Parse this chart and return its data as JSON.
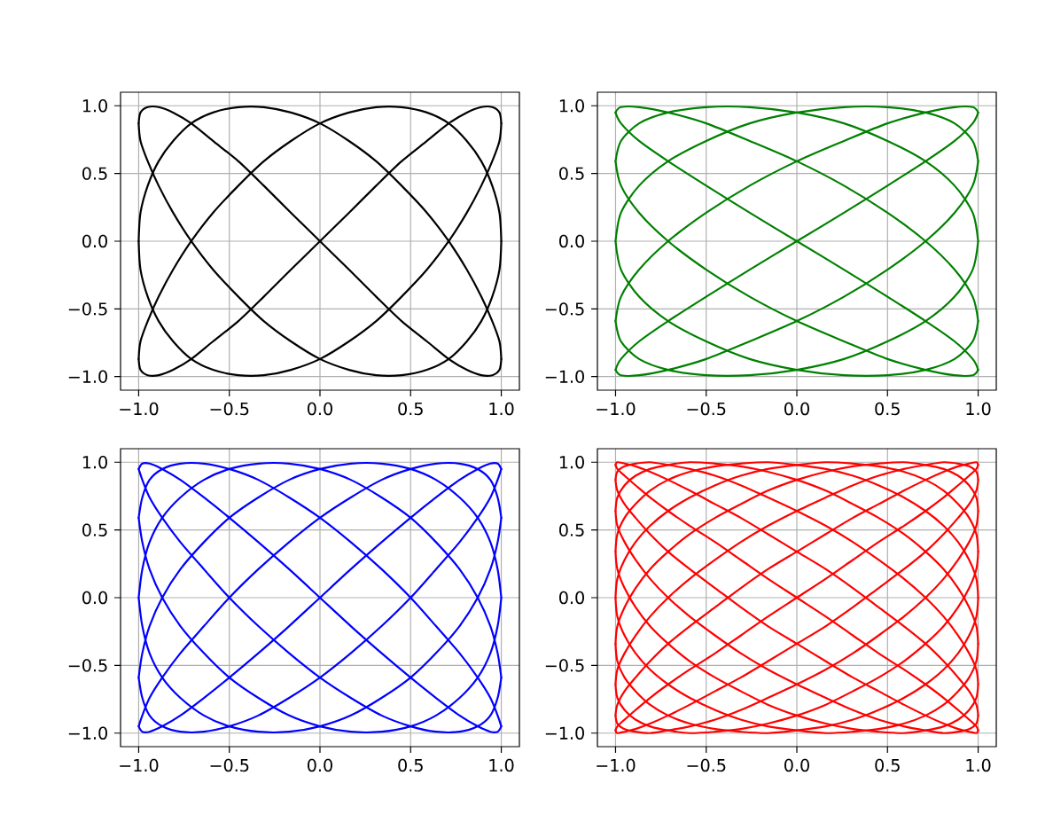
{
  "chart_data": [
    {
      "type": "line",
      "grid": true,
      "xlim": [
        -1.1,
        1.1
      ],
      "ylim": [
        -1.1,
        1.1
      ],
      "xticks": [
        {
          "value": -1.0,
          "label": "−1.0"
        },
        {
          "value": -0.5,
          "label": "−0.5"
        },
        {
          "value": 0.0,
          "label": "0.0"
        },
        {
          "value": 0.5,
          "label": "0.5"
        },
        {
          "value": 1.0,
          "label": "1.0"
        }
      ],
      "yticks": [
        {
          "value": -1.0,
          "label": "−1.0"
        },
        {
          "value": -0.5,
          "label": "−0.5"
        },
        {
          "value": 0.0,
          "label": "0.0"
        },
        {
          "value": 0.5,
          "label": "0.5"
        },
        {
          "value": 1.0,
          "label": "1.0"
        }
      ],
      "series": [
        {
          "color": "#000000",
          "x": [
            -1,
            -0.99,
            -0.95,
            -0.89,
            -0.81,
            -0.71,
            -0.59,
            -0.45,
            -0.31,
            -0.16,
            0,
            0.16,
            0.31,
            0.45,
            0.59,
            0.71,
            0.81,
            0.89,
            0.95,
            0.99,
            1
          ],
          "values": [
            -0.87,
            -0.95,
            -0.99,
            -0.99,
            -0.95,
            -0.87,
            -0.74,
            -0.59,
            -0.41,
            -0.21,
            0,
            0.21,
            0.41,
            0.59,
            0.74,
            0.87,
            0.95,
            0.99,
            0.99,
            0.95,
            0.87
          ]
        },
        {
          "color": "#000000",
          "x": [
            1,
            0.99,
            0.95,
            0.89,
            0.81,
            0.71,
            0.59,
            0.45,
            0.31,
            0.16,
            0,
            -0.16,
            -0.31,
            -0.45,
            -0.59,
            -0.71,
            -0.81,
            -0.89,
            -0.95,
            -0.99,
            -1
          ],
          "values": [
            0.87,
            0.74,
            0.59,
            0.41,
            0.21,
            0,
            -0.21,
            -0.41,
            -0.59,
            -0.74,
            -0.87,
            -0.95,
            -0.99,
            -0.99,
            -0.95,
            -0.87,
            -0.74,
            -0.59,
            -0.41,
            -0.21,
            0
          ]
        },
        {
          "color": "#000000",
          "x": [
            -1,
            -0.99,
            -0.95,
            -0.89,
            -0.81,
            -0.71,
            -0.59,
            -0.45,
            -0.31,
            -0.16,
            0,
            0.16,
            0.31,
            0.45,
            0.59,
            0.71,
            0.81,
            0.89,
            0.95,
            0.99,
            1
          ],
          "values": [
            0,
            0.21,
            0.41,
            0.59,
            0.74,
            0.87,
            0.95,
            0.99,
            0.99,
            0.95,
            0.87,
            0.74,
            0.59,
            0.41,
            0.21,
            0,
            -0.21,
            -0.41,
            -0.59,
            -0.74,
            -0.87
          ]
        },
        {
          "color": "#000000",
          "x": [
            1,
            0.99,
            0.95,
            0.89,
            0.81,
            0.71,
            0.59,
            0.45,
            0.31,
            0.16,
            0,
            -0.16,
            -0.31,
            -0.45,
            -0.59,
            -0.71,
            -0.81,
            -0.89,
            -0.95,
            -0.99,
            -1
          ],
          "values": [
            -0.87,
            -0.95,
            -0.99,
            -0.99,
            -0.95,
            -0.87,
            -0.74,
            -0.59,
            -0.41,
            -0.21,
            0,
            0.21,
            0.41,
            0.59,
            0.74,
            0.87,
            0.95,
            0.99,
            0.99,
            0.95,
            0.87
          ]
        },
        {
          "color": "#000000",
          "x": [
            -1,
            -0.99,
            -0.95,
            -0.89,
            -0.81,
            -0.71,
            -0.59,
            -0.45,
            -0.31,
            -0.16,
            0,
            0.16,
            0.31,
            0.45,
            0.59,
            0.71,
            0.81,
            0.89,
            0.95,
            0.99,
            1
          ],
          "values": [
            0.87,
            0.74,
            0.59,
            0.41,
            0.21,
            0,
            -0.21,
            -0.41,
            -0.59,
            -0.74,
            -0.87,
            -0.95,
            -0.99,
            -0.99,
            -0.95,
            -0.87,
            -0.74,
            -0.59,
            -0.41,
            -0.21,
            0
          ]
        },
        {
          "color": "#000000",
          "x": [
            1,
            0.99,
            0.95,
            0.89,
            0.81,
            0.71,
            0.59,
            0.45,
            0.31,
            0.16,
            0,
            -0.16,
            -0.31,
            -0.45,
            -0.59,
            -0.71,
            -0.81,
            -0.89,
            -0.95,
            -0.99,
            -1
          ],
          "values": [
            0,
            0.21,
            0.41,
            0.59,
            0.74,
            0.87,
            0.95,
            0.99,
            0.99,
            0.95,
            0.87,
            0.74,
            0.59,
            0.41,
            0.21,
            0,
            -0.21,
            -0.41,
            -0.59,
            -0.74,
            -0.87
          ]
        }
      ]
    },
    {
      "type": "line",
      "grid": true,
      "xlim": [
        -1.1,
        1.1
      ],
      "ylim": [
        -1.1,
        1.1
      ],
      "xticks": [
        {
          "value": -1.0,
          "label": "−1.0"
        },
        {
          "value": -0.5,
          "label": "−0.5"
        },
        {
          "value": 0.0,
          "label": "0.0"
        },
        {
          "value": 0.5,
          "label": "0.5"
        },
        {
          "value": 1.0,
          "label": "1.0"
        }
      ],
      "yticks": [
        {
          "value": -1.0,
          "label": "−1.0"
        },
        {
          "value": -0.5,
          "label": "−0.5"
        },
        {
          "value": 0.0,
          "label": "0.0"
        },
        {
          "value": 0.5,
          "label": "0.5"
        },
        {
          "value": 1.0,
          "label": "1.0"
        }
      ],
      "series": [
        {
          "color": "#008000",
          "x": [
            -1,
            -0.97,
            -0.87,
            -0.71,
            -0.5,
            -0.26,
            0,
            0.26,
            0.5,
            0.71,
            0.87,
            0.97,
            1
          ],
          "values": [
            -0.95,
            -0.87,
            -0.74,
            -0.59,
            -0.41,
            -0.21,
            0,
            0.21,
            0.41,
            0.59,
            0.74,
            0.87,
            0.95
          ]
        },
        {
          "color": "#008000",
          "x": [
            1,
            0.97,
            0.87,
            0.71,
            0.5,
            0.26,
            0,
            -0.26,
            -0.5,
            -0.71,
            -0.87,
            -0.97,
            -1
          ],
          "values": [
            0.95,
            0.99,
            0.99,
            0.95,
            0.87,
            0.74,
            0.59,
            0.41,
            0.21,
            0,
            -0.21,
            -0.41,
            -0.59
          ]
        },
        {
          "color": "#008000",
          "x": [
            -1,
            -0.97,
            -0.87,
            -0.71,
            -0.5,
            -0.26,
            0,
            0.26,
            0.5,
            0.71,
            0.87,
            0.97,
            1
          ],
          "values": [
            -0.59,
            -0.74,
            -0.87,
            -0.95,
            -0.99,
            -0.99,
            -0.95,
            -0.87,
            -0.74,
            -0.59,
            -0.41,
            -0.21,
            0
          ]
        },
        {
          "color": "#008000",
          "x": [
            1,
            0.97,
            0.87,
            0.71,
            0.5,
            0.26,
            0,
            -0.26,
            -0.5,
            -0.71,
            -0.87,
            -0.97,
            -1
          ],
          "values": [
            0,
            0.21,
            0.41,
            0.59,
            0.74,
            0.87,
            0.95,
            0.99,
            0.99,
            0.95,
            0.87,
            0.74,
            0.59
          ]
        },
        {
          "color": "#008000",
          "x": [
            -1,
            -0.97,
            -0.87,
            -0.71,
            -0.5,
            -0.26,
            0,
            0.26,
            0.5,
            0.71,
            0.87,
            0.97,
            1
          ],
          "values": [
            0.59,
            0.41,
            0.21,
            0,
            -0.21,
            -0.41,
            -0.59,
            -0.74,
            -0.87,
            -0.95,
            -0.99,
            -0.99,
            -0.95
          ]
        },
        {
          "color": "#008000",
          "x": [
            1,
            0.97,
            0.87,
            0.71,
            0.5,
            0.26,
            0,
            -0.26,
            -0.5,
            -0.71,
            -0.87,
            -0.97,
            -1
          ],
          "values": [
            -0.95,
            -0.87,
            -0.74,
            -0.59,
            -0.41,
            -0.21,
            0,
            0.21,
            0.41,
            0.59,
            0.74,
            0.87,
            0.95
          ]
        },
        {
          "color": "#008000",
          "x": [
            -1,
            -0.97,
            -0.87,
            -0.71,
            -0.5,
            -0.26,
            0,
            0.26,
            0.5,
            0.71,
            0.87,
            0.97,
            1
          ],
          "values": [
            0.95,
            0.99,
            0.99,
            0.95,
            0.87,
            0.74,
            0.59,
            0.41,
            0.21,
            0,
            -0.21,
            -0.41,
            -0.59
          ]
        },
        {
          "color": "#008000",
          "x": [
            1,
            0.97,
            0.87,
            0.71,
            0.5,
            0.26,
            0,
            -0.26,
            -0.5,
            -0.71,
            -0.87,
            -0.97,
            -1
          ],
          "values": [
            -0.59,
            -0.74,
            -0.87,
            -0.95,
            -0.99,
            -0.99,
            -0.95,
            -0.87,
            -0.74,
            -0.59,
            -0.41,
            -0.21,
            0
          ]
        },
        {
          "color": "#008000",
          "x": [
            -1,
            -0.97,
            -0.87,
            -0.71,
            -0.5,
            -0.26,
            0,
            0.26,
            0.5,
            0.71,
            0.87,
            0.97,
            1
          ],
          "values": [
            0,
            0.21,
            0.41,
            0.59,
            0.74,
            0.87,
            0.95,
            0.99,
            0.99,
            0.95,
            0.87,
            0.74,
            0.59
          ]
        },
        {
          "color": "#008000",
          "x": [
            1,
            0.97,
            0.87,
            0.71,
            0.5,
            0.26,
            0,
            -0.26,
            -0.5,
            -0.71,
            -0.87,
            -0.97,
            -1
          ],
          "values": [
            0.59,
            0.41,
            0.21,
            0,
            -0.21,
            -0.41,
            -0.59,
            -0.74,
            -0.87,
            -0.95,
            -0.99,
            -0.99,
            -0.95
          ]
        }
      ]
    },
    {
      "type": "line",
      "grid": true,
      "xlim": [
        -1.1,
        1.1
      ],
      "ylim": [
        -1.1,
        1.1
      ],
      "xticks": [
        {
          "value": -1.0,
          "label": "−1.0"
        },
        {
          "value": -0.5,
          "label": "−0.5"
        },
        {
          "value": 0.0,
          "label": "0.0"
        },
        {
          "value": 0.5,
          "label": "0.5"
        },
        {
          "value": 1.0,
          "label": "1.0"
        }
      ],
      "yticks": [
        {
          "value": -1.0,
          "label": "−1.0"
        },
        {
          "value": -0.5,
          "label": "−0.5"
        },
        {
          "value": 0.0,
          "label": "0.0"
        },
        {
          "value": 0.5,
          "label": "0.5"
        },
        {
          "value": 1.0,
          "label": "1.0"
        }
      ],
      "series": [
        {
          "color": "#0000ff",
          "x": [
            -1,
            -0.98,
            -0.94,
            -0.87,
            -0.77,
            -0.64,
            -0.5,
            -0.34,
            -0.17,
            0,
            0.17,
            0.34,
            0.5,
            0.64,
            0.77,
            0.87,
            0.94,
            0.98,
            1
          ],
          "values": [
            -0.95,
            -0.99,
            -0.99,
            -0.95,
            -0.87,
            -0.74,
            -0.59,
            -0.41,
            -0.21,
            0,
            0.21,
            0.41,
            0.59,
            0.74,
            0.87,
            0.95,
            0.99,
            0.99,
            0.95
          ]
        },
        {
          "color": "#0000ff",
          "x": [
            1,
            0.98,
            0.94,
            0.87,
            0.77,
            0.64,
            0.5,
            0.34,
            0.17,
            0,
            -0.17,
            -0.34,
            -0.5,
            -0.64,
            -0.77,
            -0.87,
            -0.94,
            -0.98,
            -1
          ],
          "values": [
            0.95,
            0.87,
            0.74,
            0.59,
            0.41,
            0.21,
            0,
            -0.21,
            -0.41,
            -0.59,
            -0.74,
            -0.87,
            -0.95,
            -0.99,
            -0.99,
            -0.95,
            -0.87,
            -0.74,
            -0.59
          ]
        },
        {
          "color": "#0000ff",
          "x": [
            -1,
            -0.98,
            -0.94,
            -0.87,
            -0.77,
            -0.64,
            -0.5,
            -0.34,
            -0.17,
            0,
            0.17,
            0.34,
            0.5,
            0.64,
            0.77,
            0.87,
            0.94,
            0.98,
            1
          ],
          "values": [
            -0.59,
            -0.41,
            -0.21,
            0,
            0.21,
            0.41,
            0.59,
            0.74,
            0.87,
            0.95,
            0.99,
            0.99,
            0.95,
            0.87,
            0.74,
            0.59,
            0.41,
            0.21,
            0
          ]
        },
        {
          "color": "#0000ff",
          "x": [
            1,
            0.98,
            0.94,
            0.87,
            0.77,
            0.64,
            0.5,
            0.34,
            0.17,
            0,
            -0.17,
            -0.34,
            -0.5,
            -0.64,
            -0.77,
            -0.87,
            -0.94,
            -0.98,
            -1
          ],
          "values": [
            0,
            -0.21,
            -0.41,
            -0.59,
            -0.74,
            -0.87,
            -0.95,
            -0.99,
            -0.99,
            -0.95,
            -0.87,
            -0.74,
            -0.59,
            -0.41,
            -0.21,
            0,
            0.21,
            0.41,
            0.59
          ]
        },
        {
          "color": "#0000ff",
          "x": [
            -1,
            -0.98,
            -0.94,
            -0.87,
            -0.77,
            -0.64,
            -0.5,
            -0.34,
            -0.17,
            0,
            0.17,
            0.34,
            0.5,
            0.64,
            0.77,
            0.87,
            0.94,
            0.98,
            1
          ],
          "values": [
            0.59,
            0.74,
            0.87,
            0.95,
            0.99,
            0.99,
            0.95,
            0.87,
            0.74,
            0.59,
            0.41,
            0.21,
            0,
            -0.21,
            -0.41,
            -0.59,
            -0.74,
            -0.87,
            -0.95
          ]
        },
        {
          "color": "#0000ff",
          "x": [
            1,
            0.98,
            0.94,
            0.87,
            0.77,
            0.64,
            0.5,
            0.34,
            0.17,
            0,
            -0.17,
            -0.34,
            -0.5,
            -0.64,
            -0.77,
            -0.87,
            -0.94,
            -0.98,
            -1
          ],
          "values": [
            -0.95,
            -0.99,
            -0.99,
            -0.95,
            -0.87,
            -0.74,
            -0.59,
            -0.41,
            -0.21,
            0,
            0.21,
            0.41,
            0.59,
            0.74,
            0.87,
            0.95,
            0.99,
            0.99,
            0.95
          ]
        },
        {
          "color": "#0000ff",
          "x": [
            -1,
            -0.98,
            -0.94,
            -0.87,
            -0.77,
            -0.64,
            -0.5,
            -0.34,
            -0.17,
            0,
            0.17,
            0.34,
            0.5,
            0.64,
            0.77,
            0.87,
            0.94,
            0.98,
            1
          ],
          "values": [
            0.95,
            0.87,
            0.74,
            0.59,
            0.41,
            0.21,
            0,
            -0.21,
            -0.41,
            -0.59,
            -0.74,
            -0.87,
            -0.95,
            -0.99,
            -0.99,
            -0.95,
            -0.87,
            -0.74,
            -0.59
          ]
        },
        {
          "color": "#0000ff",
          "x": [
            1,
            0.98,
            0.94,
            0.87,
            0.77,
            0.64,
            0.5,
            0.34,
            0.17,
            0,
            -0.17,
            -0.34,
            -0.5,
            -0.64,
            -0.77,
            -0.87,
            -0.94,
            -0.98,
            -1
          ],
          "values": [
            -0.59,
            -0.41,
            -0.21,
            0,
            0.21,
            0.41,
            0.59,
            0.74,
            0.87,
            0.95,
            0.99,
            0.99,
            0.95,
            0.87,
            0.74,
            0.59,
            0.41,
            0.21,
            0
          ]
        },
        {
          "color": "#0000ff",
          "x": [
            -1,
            -0.98,
            -0.94,
            -0.87,
            -0.77,
            -0.64,
            -0.5,
            -0.34,
            -0.17,
            0,
            0.17,
            0.34,
            0.5,
            0.64,
            0.77,
            0.87,
            0.94,
            0.98,
            1
          ],
          "values": [
            0,
            -0.21,
            -0.41,
            -0.59,
            -0.74,
            -0.87,
            -0.95,
            -0.99,
            -0.99,
            -0.95,
            -0.87,
            -0.74,
            -0.59,
            -0.41,
            -0.21,
            0,
            0.21,
            0.41,
            0.59
          ]
        },
        {
          "color": "#0000ff",
          "x": [
            1,
            0.98,
            0.94,
            0.87,
            0.77,
            0.64,
            0.5,
            0.34,
            0.17,
            0,
            -0.17,
            -0.34,
            -0.5,
            -0.64,
            -0.77,
            -0.87,
            -0.94,
            -0.98,
            -1
          ],
          "values": [
            0.59,
            0.74,
            0.87,
            0.95,
            0.99,
            0.99,
            0.95,
            0.87,
            0.74,
            0.59,
            0.41,
            0.21,
            0,
            -0.21,
            -0.41,
            -0.59,
            -0.74,
            -0.87,
            -0.95
          ]
        }
      ]
    },
    {
      "type": "line",
      "grid": true,
      "xlim": [
        -1.1,
        1.1
      ],
      "ylim": [
        -1.1,
        1.1
      ],
      "xticks": [
        {
          "value": -1.0,
          "label": "−1.0"
        },
        {
          "value": -0.5,
          "label": "−0.5"
        },
        {
          "value": 0.0,
          "label": "0.0"
        },
        {
          "value": 0.5,
          "label": "0.5"
        },
        {
          "value": 1.0,
          "label": "1.0"
        }
      ],
      "yticks": [
        {
          "value": -1.0,
          "label": "−1.0"
        },
        {
          "value": -0.5,
          "label": "−0.5"
        },
        {
          "value": 0.0,
          "label": "0.0"
        },
        {
          "value": 0.5,
          "label": "0.5"
        },
        {
          "value": 1.0,
          "label": "1.0"
        }
      ],
      "series": [
        {
          "color": "#ff0000",
          "x": [
            -1,
            -0.99,
            -0.95,
            -0.89,
            -0.81,
            -0.71,
            -0.59,
            -0.45,
            -0.31,
            -0.16,
            0,
            0.16,
            0.31,
            0.45,
            0.59,
            0.71,
            0.81,
            0.89,
            0.95,
            0.99,
            1
          ],
          "values": [
            -0.98,
            -0.95,
            -0.9,
            -0.83,
            -0.74,
            -0.64,
            -0.53,
            -0.41,
            -0.28,
            -0.14,
            0,
            0.14,
            0.28,
            0.41,
            0.53,
            0.64,
            0.74,
            0.83,
            0.9,
            0.95,
            0.98
          ]
        },
        {
          "color": "#ff0000",
          "x": [
            1,
            0.99,
            0.95,
            0.89,
            0.81,
            0.71,
            0.59,
            0.45,
            0.31,
            0.16,
            0,
            -0.16,
            -0.31,
            -0.45,
            -0.59,
            -0.71,
            -0.81,
            -0.89,
            -0.95,
            -0.99,
            -1
          ],
          "values": [
            0.98,
            1,
            0.99,
            0.97,
            0.93,
            0.87,
            0.79,
            0.69,
            0.59,
            0.47,
            0.34,
            0.21,
            0.07,
            -0.07,
            -0.21,
            -0.34,
            -0.47,
            -0.59,
            -0.69,
            -0.79,
            -0.87
          ]
        },
        {
          "color": "#ff0000",
          "x": [
            -1,
            -0.99,
            -0.95,
            -0.89,
            -0.81,
            -0.71,
            -0.59,
            -0.45,
            -0.31,
            -0.16,
            0,
            0.16,
            0.31,
            0.45,
            0.59,
            0.71,
            0.81,
            0.89,
            0.95,
            0.99,
            1
          ],
          "values": [
            -0.87,
            -0.93,
            -0.97,
            -0.99,
            -1,
            -0.98,
            -0.95,
            -0.9,
            -0.83,
            -0.74,
            -0.64,
            -0.53,
            -0.41,
            -0.28,
            -0.14,
            0,
            0.14,
            0.28,
            0.41,
            0.53,
            0.64
          ]
        },
        {
          "color": "#ff0000",
          "x": [
            1,
            0.99,
            0.95,
            0.89,
            0.81,
            0.71,
            0.59,
            0.45,
            0.31,
            0.16,
            0,
            -0.16,
            -0.31,
            -0.45,
            -0.59,
            -0.71,
            -0.81,
            -0.89,
            -0.95,
            -0.99,
            -1
          ],
          "values": [
            0.64,
            0.74,
            0.83,
            0.9,
            0.95,
            0.98,
            1,
            0.99,
            0.97,
            0.93,
            0.87,
            0.79,
            0.69,
            0.59,
            0.47,
            0.34,
            0.21,
            0.07,
            -0.07,
            -0.21,
            -0.34
          ]
        },
        {
          "color": "#ff0000",
          "x": [
            -1,
            -0.99,
            -0.95,
            -0.89,
            -0.81,
            -0.71,
            -0.59,
            -0.45,
            -0.31,
            -0.16,
            0,
            0.16,
            0.31,
            0.45,
            0.59,
            0.71,
            0.81,
            0.89,
            0.95,
            0.99,
            1
          ],
          "values": [
            -0.34,
            -0.47,
            -0.59,
            -0.69,
            -0.79,
            -0.87,
            -0.93,
            -0.97,
            -0.99,
            -1,
            -0.98,
            -0.95,
            -0.9,
            -0.83,
            -0.74,
            -0.64,
            -0.53,
            -0.41,
            -0.28,
            -0.14,
            0
          ]
        },
        {
          "color": "#ff0000",
          "x": [
            1,
            0.99,
            0.95,
            0.89,
            0.81,
            0.71,
            0.59,
            0.45,
            0.31,
            0.16,
            0,
            -0.16,
            -0.31,
            -0.45,
            -0.59,
            -0.71,
            -0.81,
            -0.89,
            -0.95,
            -0.99,
            -1
          ],
          "values": [
            0,
            0.14,
            0.28,
            0.41,
            0.53,
            0.64,
            0.74,
            0.83,
            0.9,
            0.95,
            0.98,
            1,
            0.99,
            0.97,
            0.93,
            0.87,
            0.79,
            0.69,
            0.59,
            0.47,
            0.34
          ]
        },
        {
          "color": "#ff0000",
          "x": [
            -1,
            -0.99,
            -0.95,
            -0.89,
            -0.81,
            -0.71,
            -0.59,
            -0.45,
            -0.31,
            -0.16,
            0,
            0.16,
            0.31,
            0.45,
            0.59,
            0.71,
            0.81,
            0.89,
            0.95,
            0.99,
            1
          ],
          "values": [
            0.34,
            0.21,
            0.07,
            -0.07,
            -0.21,
            -0.34,
            -0.47,
            -0.59,
            -0.69,
            -0.79,
            -0.87,
            -0.93,
            -0.97,
            -0.99,
            -1,
            -0.98,
            -0.95,
            -0.9,
            -0.83,
            -0.74,
            -0.64
          ]
        },
        {
          "color": "#ff0000",
          "x": [
            1,
            0.99,
            0.95,
            0.89,
            0.81,
            0.71,
            0.59,
            0.45,
            0.31,
            0.16,
            0,
            -0.16,
            -0.31,
            -0.45,
            -0.59,
            -0.71,
            -0.81,
            -0.89,
            -0.95,
            -0.99,
            -1
          ],
          "values": [
            -0.64,
            -0.53,
            -0.41,
            -0.28,
            -0.14,
            0,
            0.14,
            0.28,
            0.41,
            0.53,
            0.64,
            0.74,
            0.83,
            0.9,
            0.95,
            0.98,
            1,
            0.99,
            0.97,
            0.93,
            0.87
          ]
        },
        {
          "color": "#ff0000",
          "x": [
            -1,
            -0.99,
            -0.95,
            -0.89,
            -0.81,
            -0.71,
            -0.59,
            -0.45,
            -0.31,
            -0.16,
            0,
            0.16,
            0.31,
            0.45,
            0.59,
            0.71,
            0.81,
            0.89,
            0.95,
            0.99,
            1
          ],
          "values": [
            0.87,
            0.79,
            0.69,
            0.59,
            0.47,
            0.34,
            0.21,
            0.07,
            -0.07,
            -0.21,
            -0.34,
            -0.47,
            -0.59,
            -0.69,
            -0.79,
            -0.87,
            -0.93,
            -0.97,
            -0.99,
            -1,
            -0.98
          ]
        },
        {
          "color": "#ff0000",
          "x": [
            1,
            0.99,
            0.95,
            0.89,
            0.81,
            0.71,
            0.59,
            0.45,
            0.31,
            0.16,
            0,
            -0.16,
            -0.31,
            -0.45,
            -0.59,
            -0.71,
            -0.81,
            -0.89,
            -0.95,
            -0.99,
            -1
          ],
          "values": [
            -0.98,
            -0.95,
            -0.9,
            -0.83,
            -0.74,
            -0.64,
            -0.53,
            -0.41,
            -0.28,
            -0.14,
            0,
            0.14,
            0.28,
            0.41,
            0.53,
            0.64,
            0.74,
            0.83,
            0.9,
            0.95,
            0.98
          ]
        },
        {
          "color": "#ff0000",
          "x": [
            -1,
            -0.99,
            -0.95,
            -0.89,
            -0.81,
            -0.71,
            -0.59,
            -0.45,
            -0.31,
            -0.16,
            0,
            0.16,
            0.31,
            0.45,
            0.59,
            0.71,
            0.81,
            0.89,
            0.95,
            0.99,
            1
          ],
          "values": [
            0.98,
            1,
            0.99,
            0.97,
            0.93,
            0.87,
            0.79,
            0.69,
            0.59,
            0.47,
            0.34,
            0.21,
            0.07,
            -0.07,
            -0.21,
            -0.34,
            -0.47,
            -0.59,
            -0.69,
            -0.79,
            -0.87
          ]
        },
        {
          "color": "#ff0000",
          "x": [
            1,
            0.99,
            0.95,
            0.89,
            0.81,
            0.71,
            0.59,
            0.45,
            0.31,
            0.16,
            0,
            -0.16,
            -0.31,
            -0.45,
            -0.59,
            -0.71,
            -0.81,
            -0.89,
            -0.95,
            -0.99,
            -1
          ],
          "values": [
            -0.87,
            -0.93,
            -0.97,
            -0.99,
            -1,
            -0.98,
            -0.95,
            -0.9,
            -0.83,
            -0.74,
            -0.64,
            -0.53,
            -0.41,
            -0.28,
            -0.14,
            0,
            0.14,
            0.28,
            0.41,
            0.53,
            0.64
          ]
        },
        {
          "color": "#ff0000",
          "x": [
            -1,
            -0.99,
            -0.95,
            -0.89,
            -0.81,
            -0.71,
            -0.59,
            -0.45,
            -0.31,
            -0.16,
            0,
            0.16,
            0.31,
            0.45,
            0.59,
            0.71,
            0.81,
            0.89,
            0.95,
            0.99,
            1
          ],
          "values": [
            0.64,
            0.74,
            0.83,
            0.9,
            0.95,
            0.98,
            1,
            0.99,
            0.97,
            0.93,
            0.87,
            0.79,
            0.69,
            0.59,
            0.47,
            0.34,
            0.21,
            0.07,
            -0.07,
            -0.21,
            -0.34
          ]
        },
        {
          "color": "#ff0000",
          "x": [
            1,
            0.99,
            0.95,
            0.89,
            0.81,
            0.71,
            0.59,
            0.45,
            0.31,
            0.16,
            0,
            -0.16,
            -0.31,
            -0.45,
            -0.59,
            -0.71,
            -0.81,
            -0.89,
            -0.95,
            -0.99,
            -1
          ],
          "values": [
            -0.34,
            -0.47,
            -0.59,
            -0.69,
            -0.79,
            -0.87,
            -0.93,
            -0.97,
            -0.99,
            -1,
            -0.98,
            -0.95,
            -0.9,
            -0.83,
            -0.74,
            -0.64,
            -0.53,
            -0.41,
            -0.28,
            -0.14,
            0
          ]
        },
        {
          "color": "#ff0000",
          "x": [
            -1,
            -0.99,
            -0.95,
            -0.89,
            -0.81,
            -0.71,
            -0.59,
            -0.45,
            -0.31,
            -0.16,
            0,
            0.16,
            0.31,
            0.45,
            0.59,
            0.71,
            0.81,
            0.89,
            0.95,
            0.99,
            1
          ],
          "values": [
            0,
            0.14,
            0.28,
            0.41,
            0.53,
            0.64,
            0.74,
            0.83,
            0.9,
            0.95,
            0.98,
            1,
            0.99,
            0.97,
            0.93,
            0.87,
            0.79,
            0.69,
            0.59,
            0.47,
            0.34
          ]
        },
        {
          "color": "#ff0000",
          "x": [
            1,
            0.99,
            0.95,
            0.89,
            0.81,
            0.71,
            0.59,
            0.45,
            0.31,
            0.16,
            0,
            -0.16,
            -0.31,
            -0.45,
            -0.59,
            -0.71,
            -0.81,
            -0.89,
            -0.95,
            -0.99,
            -1
          ],
          "values": [
            0.34,
            0.21,
            0.07,
            -0.07,
            -0.21,
            -0.34,
            -0.47,
            -0.59,
            -0.69,
            -0.79,
            -0.87,
            -0.93,
            -0.97,
            -0.99,
            -1,
            -0.98,
            -0.95,
            -0.9,
            -0.83,
            -0.74,
            -0.64
          ]
        },
        {
          "color": "#ff0000",
          "x": [
            -1,
            -0.99,
            -0.95,
            -0.89,
            -0.81,
            -0.71,
            -0.59,
            -0.45,
            -0.31,
            -0.16,
            0,
            0.16,
            0.31,
            0.45,
            0.59,
            0.71,
            0.81,
            0.89,
            0.95,
            0.99,
            1
          ],
          "values": [
            -0.64,
            -0.53,
            -0.41,
            -0.28,
            -0.14,
            0,
            0.14,
            0.28,
            0.41,
            0.53,
            0.64,
            0.74,
            0.83,
            0.9,
            0.95,
            0.98,
            1,
            0.99,
            0.97,
            0.93,
            0.87
          ]
        },
        {
          "color": "#ff0000",
          "x": [
            1,
            0.99,
            0.95,
            0.89,
            0.81,
            0.71,
            0.59,
            0.45,
            0.31,
            0.16,
            0,
            -0.16,
            -0.31,
            -0.45,
            -0.59,
            -0.71,
            -0.81,
            -0.89,
            -0.95,
            -0.99,
            -1
          ],
          "values": [
            0.87,
            0.79,
            0.69,
            0.59,
            0.47,
            0.34,
            0.21,
            0.07,
            -0.07,
            -0.21,
            -0.34,
            -0.47,
            -0.59,
            -0.69,
            -0.79,
            -0.87,
            -0.93,
            -0.97,
            -0.99,
            -1,
            -0.98
          ]
        }
      ]
    }
  ]
}
